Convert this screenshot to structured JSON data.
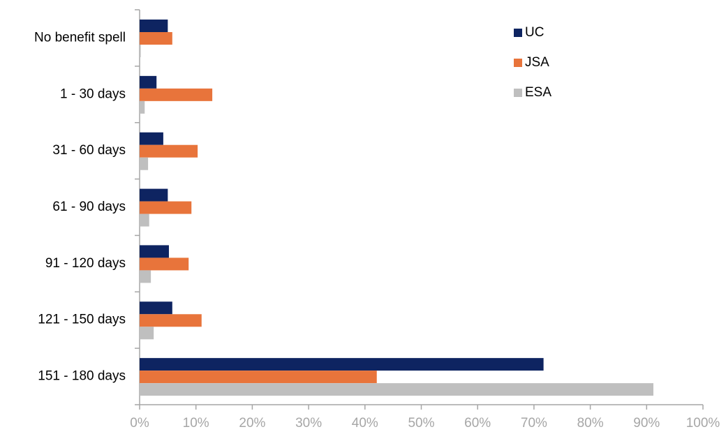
{
  "chart_data": {
    "type": "hbar",
    "categories": [
      "No benefit spell",
      "1 - 30 days",
      "31 - 60 days",
      "61 - 90 days",
      "91 - 120 days",
      "121 - 150 days",
      "151 - 180 days"
    ],
    "series": [
      {
        "name": "UC",
        "color": "#0e2461",
        "values": [
          5.0,
          3.0,
          4.2,
          5.0,
          5.2,
          5.8,
          71.7
        ]
      },
      {
        "name": "JSA",
        "color": "#e8743b",
        "values": [
          5.8,
          12.9,
          10.3,
          9.2,
          8.7,
          11.0,
          42.1
        ]
      },
      {
        "name": "ESA",
        "color": "#bfbfbf",
        "values": [
          0.2,
          0.9,
          1.5,
          1.7,
          2.0,
          2.5,
          91.2
        ]
      }
    ],
    "xlim": [
      0,
      100
    ],
    "xticks": [
      {
        "value": 0,
        "label": "0%"
      },
      {
        "value": 10,
        "label": "10%"
      },
      {
        "value": 20,
        "label": "20%"
      },
      {
        "value": 30,
        "label": "30%"
      },
      {
        "value": 40,
        "label": "40%"
      },
      {
        "value": 50,
        "label": "50%"
      },
      {
        "value": 60,
        "label": "60%"
      },
      {
        "value": 70,
        "label": "70%"
      },
      {
        "value": 80,
        "label": "80%"
      },
      {
        "value": 90,
        "label": "90%"
      },
      {
        "value": 100,
        "label": "100%"
      }
    ],
    "legend": "top-right"
  }
}
